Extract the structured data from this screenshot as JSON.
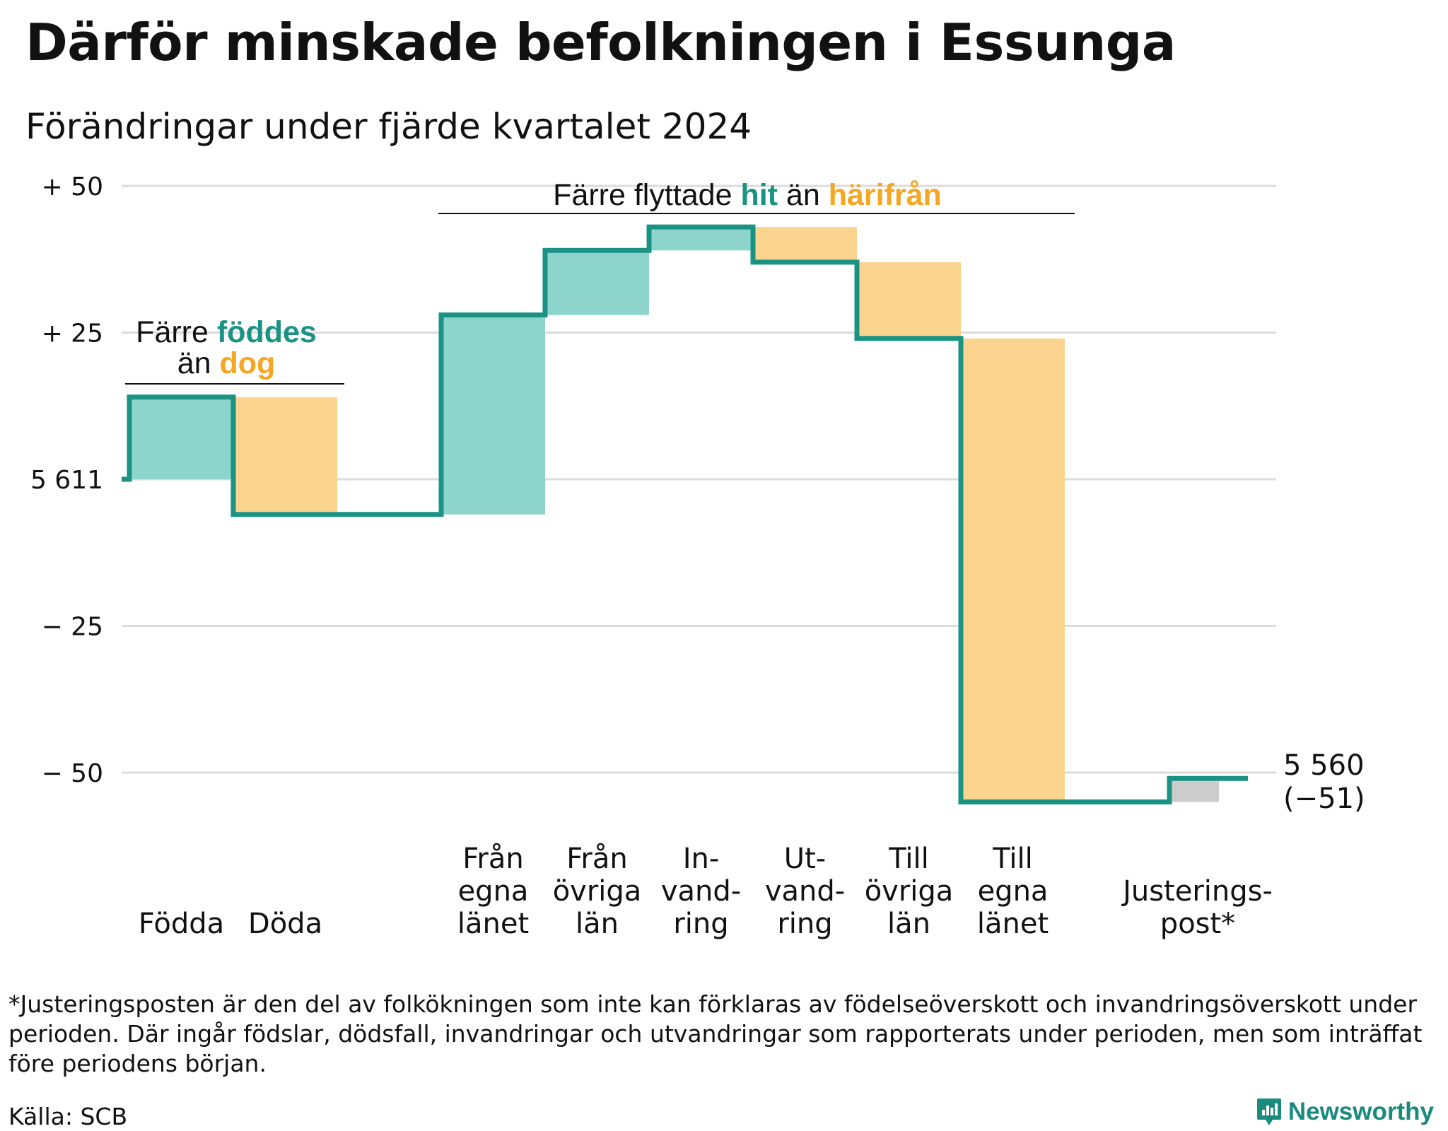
{
  "title": "Därför minskade befolkningen i Essunga",
  "subtitle": "Förändringar under fjärde kvartalet 2024",
  "footnote": "*Justeringsposten är den del av folkökningen som inte kan förklaras av födelseöverskott och invandringsöverskott under perioden. Där ingår födslar, dödsfall, invandringar och utvandringar som rapporterats under perioden, men som inträffat före periodens början.",
  "source": "Källa: SCB",
  "brand": "Newsworthy",
  "colors": {
    "line": "#1a9385",
    "increase": "#8dd5cc",
    "decrease": "#fbd58f",
    "adjustment": "#cccccc",
    "grid": "#dcdcdc",
    "accent_orange": "#f5a623"
  },
  "chart_data": {
    "type": "waterfall",
    "start_value": 5611,
    "start_label": "5 611",
    "end_value": 5560,
    "end_label": "5 560",
    "end_change_label": "(−51)",
    "y_ticks": [
      {
        "value": 50,
        "label": "+ 50"
      },
      {
        "value": 25,
        "label": "+ 25"
      },
      {
        "value": 0,
        "label": "5 611"
      },
      {
        "value": -25,
        "label": "− 25"
      },
      {
        "value": -50,
        "label": "− 50"
      }
    ],
    "ylim": [
      -56,
      52
    ],
    "steps": [
      {
        "label": [
          "Födda"
        ],
        "value": 14,
        "kind": "increase"
      },
      {
        "label": [
          "Döda"
        ],
        "value": -20,
        "kind": "decrease"
      },
      {
        "label": [
          "Från",
          "egna",
          "länet"
        ],
        "value": 34,
        "kind": "increase"
      },
      {
        "label": [
          "Från",
          "övriga",
          "län"
        ],
        "value": 11,
        "kind": "increase"
      },
      {
        "label": [
          "In-",
          "vand-",
          "ring"
        ],
        "value": 4,
        "kind": "increase"
      },
      {
        "label": [
          "Ut-",
          "vand-",
          "ring"
        ],
        "value": -6,
        "kind": "decrease"
      },
      {
        "label": [
          "Till",
          "övriga",
          "län"
        ],
        "value": -13,
        "kind": "decrease"
      },
      {
        "label": [
          "Till",
          "egna",
          "länet"
        ],
        "value": -79,
        "kind": "decrease"
      },
      {
        "label": [
          "Justerings-",
          "post*"
        ],
        "value": 4,
        "kind": "adjustment"
      }
    ],
    "annotations": [
      {
        "parts": [
          {
            "text": "Färre ",
            "color": "#111111"
          },
          {
            "text": "föddes",
            "color": "#1a9385",
            "bold": true
          }
        ],
        "line2": [
          {
            "text": "än ",
            "color": "#111111"
          },
          {
            "text": "dog",
            "color": "#f5a623",
            "bold": true
          }
        ]
      },
      {
        "parts": [
          {
            "text": "Färre flyttade ",
            "color": "#111111"
          },
          {
            "text": "hit",
            "color": "#1a9385",
            "bold": true
          },
          {
            "text": " än ",
            "color": "#111111"
          },
          {
            "text": "härifrån",
            "color": "#f5a623",
            "bold": true
          }
        ]
      }
    ]
  }
}
